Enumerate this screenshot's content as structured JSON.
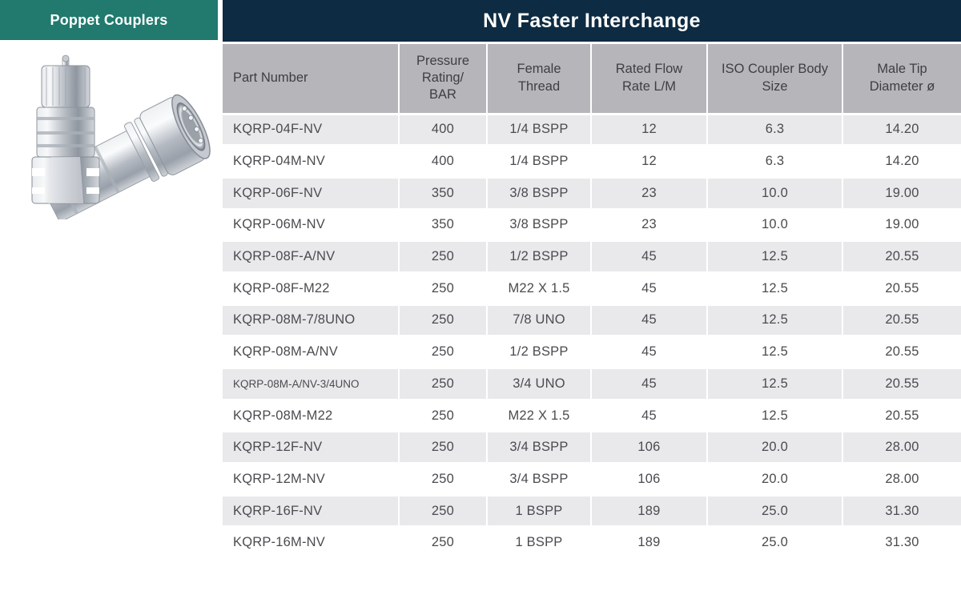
{
  "page": {
    "left_tab_label": "Poppet Couplers",
    "title": "NV Faster Interchange"
  },
  "colors": {
    "teal_tab": "#217a6d",
    "navy_title": "#0d2b42",
    "header_gray": "#b6b6ba",
    "row_stripe": "#e9e9ec",
    "cell_text": "#4b4b50"
  },
  "product_image": {
    "name": "poppet-coupler-photo",
    "description": "Two zinc-plated steel quick-release poppet couplers: male plug standing upright, female coupler lying diagonally showing internal locking balls"
  },
  "table": {
    "columns": [
      "Part Number",
      "Pressure\nRating/\nBAR",
      "Female\nThread",
      "Rated Flow\nRate L/M",
      "ISO Coupler Body\nSize",
      "Male Tip\nDiameter ø"
    ],
    "rows": [
      {
        "part_number": "KQRP-04F-NV",
        "pressure": "400",
        "thread": "1/4 BSPP",
        "flow": "12",
        "iso": "6.3",
        "tip": "14.20",
        "small": false
      },
      {
        "part_number": "KQRP-04M-NV",
        "pressure": "400",
        "thread": "1/4 BSPP",
        "flow": "12",
        "iso": "6.3",
        "tip": "14.20",
        "small": false
      },
      {
        "part_number": "KQRP-06F-NV",
        "pressure": "350",
        "thread": "3/8 BSPP",
        "flow": "23",
        "iso": "10.0",
        "tip": "19.00",
        "small": false
      },
      {
        "part_number": "KQRP-06M-NV",
        "pressure": "350",
        "thread": "3/8 BSPP",
        "flow": "23",
        "iso": "10.0",
        "tip": "19.00",
        "small": false
      },
      {
        "part_number": "KQRP-08F-A/NV",
        "pressure": "250",
        "thread": "1/2 BSPP",
        "flow": "45",
        "iso": "12.5",
        "tip": "20.55",
        "small": false
      },
      {
        "part_number": "KQRP-08F-M22",
        "pressure": "250",
        "thread": "M22 X 1.5",
        "flow": "45",
        "iso": "12.5",
        "tip": "20.55",
        "small": false
      },
      {
        "part_number": "KQRP-08M-7/8UNO",
        "pressure": "250",
        "thread": "7/8 UNO",
        "flow": "45",
        "iso": "12.5",
        "tip": "20.55",
        "small": false
      },
      {
        "part_number": "KQRP-08M-A/NV",
        "pressure": "250",
        "thread": "1/2 BSPP",
        "flow": "45",
        "iso": "12.5",
        "tip": "20.55",
        "small": false
      },
      {
        "part_number": "KQRP-08M-A/NV-3/4UNO",
        "pressure": "250",
        "thread": "3/4 UNO",
        "flow": "45",
        "iso": "12.5",
        "tip": "20.55",
        "small": true
      },
      {
        "part_number": "KQRP-08M-M22",
        "pressure": "250",
        "thread": "M22 X 1.5",
        "flow": "45",
        "iso": "12.5",
        "tip": "20.55",
        "small": false
      },
      {
        "part_number": "KQRP-12F-NV",
        "pressure": "250",
        "thread": "3/4 BSPP",
        "flow": "106",
        "iso": "20.0",
        "tip": "28.00",
        "small": false
      },
      {
        "part_number": "KQRP-12M-NV",
        "pressure": "250",
        "thread": "3/4 BSPP",
        "flow": "106",
        "iso": "20.0",
        "tip": "28.00",
        "small": false
      },
      {
        "part_number": "KQRP-16F-NV",
        "pressure": "250",
        "thread": "1 BSPP",
        "flow": "189",
        "iso": "25.0",
        "tip": "31.30",
        "small": false
      },
      {
        "part_number": "KQRP-16M-NV",
        "pressure": "250",
        "thread": "1 BSPP",
        "flow": "189",
        "iso": "25.0",
        "tip": "31.30",
        "small": false
      }
    ]
  }
}
